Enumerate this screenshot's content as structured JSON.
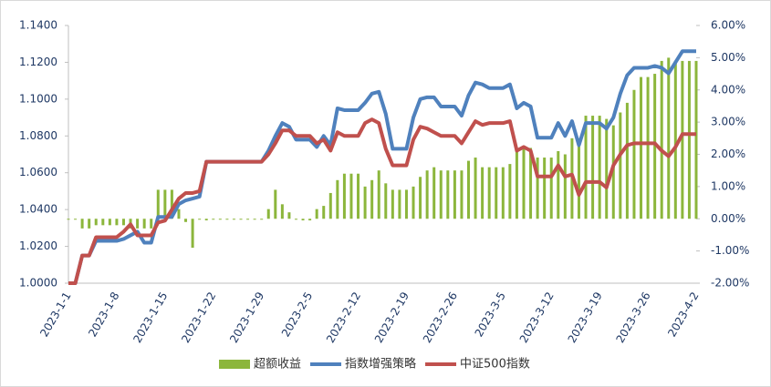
{
  "chart_data": {
    "type": "combo",
    "categories": [
      "2023-1-1",
      null,
      null,
      null,
      null,
      null,
      null,
      "2023-1-8",
      null,
      null,
      null,
      null,
      null,
      null,
      "2023-1-15",
      null,
      null,
      null,
      null,
      null,
      null,
      "2023-1-22",
      null,
      null,
      null,
      null,
      null,
      null,
      "2023-1-29",
      null,
      null,
      null,
      null,
      null,
      null,
      "2023-2-5",
      null,
      null,
      null,
      null,
      null,
      null,
      "2023-2-12",
      null,
      null,
      null,
      null,
      null,
      null,
      "2023-2-19",
      null,
      null,
      null,
      null,
      null,
      null,
      "2023-2-26",
      null,
      null,
      null,
      null,
      null,
      null,
      "2023-3-5",
      null,
      null,
      null,
      null,
      null,
      null,
      "2023-3-12",
      null,
      null,
      null,
      null,
      null,
      null,
      "2023-3-19",
      null,
      null,
      null,
      null,
      null,
      null,
      "2023-3-26",
      null,
      null,
      null,
      null,
      null,
      null,
      "2023-4-2"
    ],
    "series": [
      {
        "name": "超额收益",
        "type": "bar",
        "axis": "y2",
        "color": "#8cb63c",
        "values": [
          0,
          0,
          -0.3,
          -0.3,
          -0.2,
          -0.2,
          -0.2,
          -0.2,
          -0.2,
          -0.3,
          -0.3,
          -0.3,
          -0.3,
          0.9,
          0.9,
          0.9,
          0.3,
          -0.1,
          -0.9,
          0,
          -0.05,
          0,
          0,
          0,
          0,
          0,
          0,
          0,
          0,
          0.3,
          0.9,
          0.45,
          0.2,
          0,
          -0.05,
          -0.05,
          0.3,
          0.4,
          0.8,
          1.2,
          1.4,
          1.4,
          1.4,
          1.0,
          1.2,
          1.5,
          1.1,
          0.9,
          0.9,
          0.9,
          1.0,
          1.3,
          1.5,
          1.6,
          1.5,
          1.5,
          1.5,
          1.5,
          1.8,
          1.9,
          1.6,
          1.6,
          1.6,
          1.6,
          1.7,
          2.1,
          2.2,
          2.2,
          1.9,
          1.9,
          1.9,
          2.1,
          2.0,
          2.5,
          2.5,
          3.2,
          3.2,
          3.2,
          3.1,
          2.9,
          3.3,
          3.6,
          4.0,
          4.4,
          4.4,
          4.5,
          4.9,
          5.0,
          4.9,
          4.9,
          4.9,
          4.9
        ]
      },
      {
        "name": "指数增强策略",
        "type": "line",
        "color": "#4f81bd",
        "values": [
          1.0,
          1.0,
          1.015,
          1.015,
          1.023,
          1.023,
          1.023,
          1.023,
          1.024,
          1.026,
          1.028,
          1.022,
          1.022,
          1.036,
          1.036,
          1.036,
          1.043,
          1.045,
          1.046,
          1.047,
          1.066,
          1.066,
          1.066,
          1.066,
          1.066,
          1.066,
          1.066,
          1.066,
          1.066,
          1.072,
          1.08,
          1.087,
          1.085,
          1.078,
          1.078,
          1.078,
          1.074,
          1.08,
          1.075,
          1.095,
          1.094,
          1.094,
          1.094,
          1.098,
          1.103,
          1.104,
          1.092,
          1.073,
          1.073,
          1.073,
          1.09,
          1.1,
          1.101,
          1.101,
          1.096,
          1.096,
          1.096,
          1.091,
          1.102,
          1.109,
          1.108,
          1.106,
          1.106,
          1.106,
          1.108,
          1.095,
          1.098,
          1.096,
          1.079,
          1.079,
          1.079,
          1.087,
          1.08,
          1.088,
          1.075,
          1.087,
          1.087,
          1.087,
          1.084,
          1.09,
          1.103,
          1.113,
          1.117,
          1.117,
          1.117,
          1.118,
          1.117,
          1.114,
          1.12,
          1.126,
          1.126,
          1.126
        ]
      },
      {
        "name": "中证500指数",
        "type": "line",
        "color": "#c0504d",
        "values": [
          1.0,
          1.0,
          1.015,
          1.015,
          1.025,
          1.025,
          1.025,
          1.025,
          1.028,
          1.032,
          1.026,
          1.026,
          1.026,
          1.033,
          1.034,
          1.04,
          1.046,
          1.049,
          1.049,
          1.05,
          1.066,
          1.066,
          1.066,
          1.066,
          1.066,
          1.066,
          1.066,
          1.066,
          1.066,
          1.07,
          1.076,
          1.083,
          1.083,
          1.08,
          1.08,
          1.08,
          1.076,
          1.078,
          1.072,
          1.082,
          1.08,
          1.08,
          1.08,
          1.087,
          1.089,
          1.087,
          1.073,
          1.064,
          1.064,
          1.064,
          1.078,
          1.085,
          1.084,
          1.082,
          1.08,
          1.08,
          1.08,
          1.076,
          1.082,
          1.088,
          1.086,
          1.087,
          1.087,
          1.087,
          1.088,
          1.072,
          1.074,
          1.072,
          1.058,
          1.058,
          1.058,
          1.064,
          1.058,
          1.059,
          1.048,
          1.055,
          1.055,
          1.055,
          1.052,
          1.064,
          1.07,
          1.075,
          1.076,
          1.076,
          1.076,
          1.076,
          1.072,
          1.069,
          1.074,
          1.081,
          1.081,
          1.081
        ]
      }
    ],
    "ylim": [
      1.0,
      1.14
    ],
    "yticks": [
      {
        "value": 1.0,
        "label": "1.0000"
      },
      {
        "value": 1.02,
        "label": "1.0200"
      },
      {
        "value": 1.04,
        "label": "1.0400"
      },
      {
        "value": 1.06,
        "label": "1.0600"
      },
      {
        "value": 1.08,
        "label": "1.0800"
      },
      {
        "value": 1.1,
        "label": "1.1000"
      },
      {
        "value": 1.12,
        "label": "1.1200"
      },
      {
        "value": 1.14,
        "label": "1.1400"
      }
    ],
    "y2lim": [
      -2,
      6
    ],
    "y2ticks": [
      {
        "value": -2,
        "label": "-2.00%"
      },
      {
        "value": -1,
        "label": "-1.00%"
      },
      {
        "value": 0,
        "label": "0.00%"
      },
      {
        "value": 1,
        "label": "1.00%"
      },
      {
        "value": 2,
        "label": "2.00%"
      },
      {
        "value": 3,
        "label": "3.00%"
      },
      {
        "value": 4,
        "label": "4.00%"
      },
      {
        "value": 5,
        "label": "5.00%"
      },
      {
        "value": 6,
        "label": "6.00%"
      }
    ],
    "legend": "bottom"
  }
}
